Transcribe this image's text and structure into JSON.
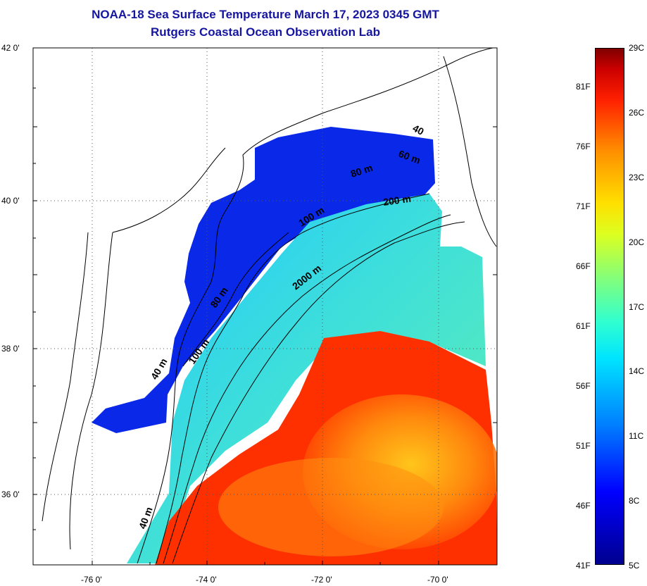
{
  "title_line1": "NOAA-18 Sea Surface Temperature March 17, 2023 0345 GMT",
  "title_line2": "Rutgers Coastal Ocean Observation Lab",
  "lat_labels": [
    "42 0'",
    "40 0'",
    "38 0'",
    "36 0'"
  ],
  "lon_labels": [
    "-76 0'",
    "-74 0'",
    "-72 0'",
    "-70 0'"
  ],
  "contour_labels": {
    "c40a": "40",
    "c60": "60 m",
    "c80": "80 m",
    "c200": "200 m",
    "c100": "100 m",
    "c2000": "2000 m",
    "c80b": "80 m",
    "c100b": "100 m",
    "c40b": "40 m",
    "c40c": "40 m"
  },
  "colorbar": {
    "fahrenheit": [
      "81F",
      "76F",
      "71F",
      "66F",
      "61F",
      "56F",
      "51F",
      "46F",
      "41F"
    ],
    "celsius": [
      "29C",
      "26C",
      "23C",
      "20C",
      "17C",
      "14C",
      "11C",
      "8C",
      "5C"
    ]
  },
  "colors": {
    "title": "#1515a0",
    "cold": "#0000ff",
    "mid": "#30e8e8",
    "warm": "#ff2000"
  }
}
